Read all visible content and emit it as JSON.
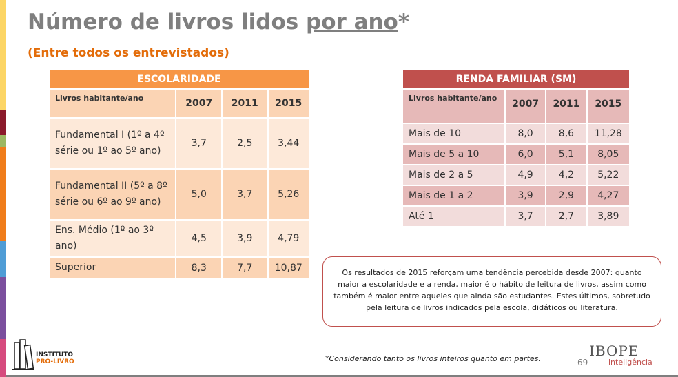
{
  "title": {
    "main": "Número de livros lidos ",
    "underlined": "por ano",
    "asterisk": "*"
  },
  "subtitle": "(Entre todos os entrevistados)",
  "escolaridade": {
    "caption": "ESCOLARIDADE",
    "header_label": "Livros habitante/ano",
    "years": [
      "2007",
      "2011",
      "2015"
    ],
    "rows": [
      {
        "label": "Fundamental I (1º a 4º série ou 1º ao 5º ano)",
        "values": [
          "3,7",
          "2,5",
          "3,44"
        ]
      },
      {
        "label": "Fundamental II (5º a 8º série ou 6º ao 9º ano)",
        "values": [
          "5,0",
          "3,7",
          "5,26"
        ]
      },
      {
        "label": "Ens. Médio (1º ao 3º ano)",
        "values": [
          "4,5",
          "3,9",
          "4,79"
        ]
      },
      {
        "label": "Superior",
        "values": [
          "8,3",
          "7,7",
          "10,87"
        ]
      }
    ]
  },
  "renda": {
    "caption": "RENDA FAMILIAR (SM)",
    "header_label": "Livros habitante/ano",
    "years": [
      "2007",
      "2011",
      "2015"
    ],
    "rows": [
      {
        "label": "Mais de 10",
        "values": [
          "8,0",
          "8,6",
          "11,28"
        ]
      },
      {
        "label": "Mais de 5 a 10",
        "values": [
          "6,0",
          "5,1",
          "8,05"
        ]
      },
      {
        "label": "Mais de 2 a 5",
        "values": [
          "4,9",
          "4,2",
          "5,22"
        ]
      },
      {
        "label": "Mais de 1 a 2",
        "values": [
          "3,9",
          "2,9",
          "4,27"
        ]
      },
      {
        "label": "Até 1",
        "values": [
          "3,7",
          "2,7",
          "3,89"
        ]
      }
    ]
  },
  "note": "Os resultados de 2015 reforçam uma tendência percebida desde 2007: quanto maior a escolaridade e a renda, maior é o hábito de leitura de livros, assim como também é maior entre aqueles que ainda são estudantes. Estes últimos, sobretudo pela leitura de livros indicados pela escola, didáticos ou literatura.",
  "footnote": "*Considerando tanto os livros inteiros quanto em partes.",
  "page_number": "69",
  "logos": {
    "instituto_line1": "INSTITUTO",
    "instituto_line2": "PRO-LIVRO",
    "ibope_line1": "IBOPE",
    "ibope_line2": "inteligência"
  },
  "colors": {
    "title": "#7f7f7f",
    "subtitle": "#e36c09",
    "escolaridade_header": "#f79646",
    "renda_header": "#c0504d",
    "side_stripe": [
      "#fcd565",
      "#f9b233",
      "#8b1a2b",
      "#9cb862",
      "#f07d1a",
      "#f6a523",
      "#4f9dd6",
      "#7b4f9e",
      "#d64b7e"
    ]
  }
}
